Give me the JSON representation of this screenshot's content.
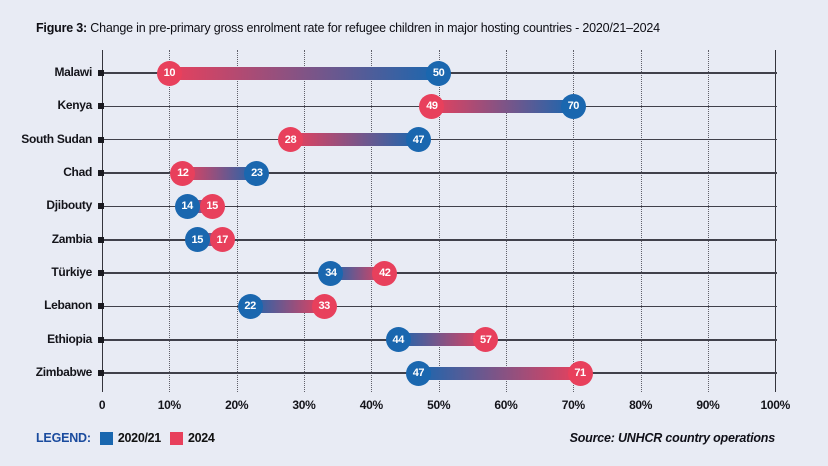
{
  "title": {
    "prefix": "Figure 3:",
    "text": "Change in pre-primary gross enrolment rate for refugee children in major hosting countries - 2020/21–2024"
  },
  "legend": {
    "label": "LEGEND:",
    "items": [
      {
        "label": "2020/21",
        "color": "#1a67af"
      },
      {
        "label": "2024",
        "color": "#e8405c"
      }
    ]
  },
  "source": "Source: UNHCR country operations",
  "colors": {
    "background": "#e8ebf4",
    "blue_2020_21": "#1a67af",
    "red_2024": "#e8405c",
    "row_line": "#40404a",
    "legend_title": "#1a4b9e"
  },
  "chart_data": {
    "type": "dumbbell",
    "title": "Change in pre-primary gross enrolment rate for refugee children in major hosting countries - 2020/21–2024",
    "categories": [
      "Malawi",
      "Kenya",
      "South Sudan",
      "Chad",
      "Djibouty",
      "Zambia",
      "Türkiye",
      "Lebanon",
      "Ethiopia",
      "Zimbabwe"
    ],
    "series": [
      {
        "name": "2020/21",
        "color": "#1a67af",
        "values": [
          50,
          70,
          47,
          23,
          14,
          15,
          34,
          22,
          44,
          47
        ]
      },
      {
        "name": "2024",
        "color": "#e8405c",
        "values": [
          10,
          49,
          28,
          12,
          15,
          17,
          42,
          33,
          57,
          71
        ]
      }
    ],
    "xlim": [
      0,
      100
    ],
    "x_tick_labels": [
      "0",
      "10%",
      "20%",
      "30%",
      "40%",
      "50%",
      "60%",
      "70%",
      "80%",
      "90%",
      "100%"
    ],
    "grid": "vertical-dotted",
    "legend_position": "bottom-left",
    "source": "Source: UNHCR country operations"
  }
}
